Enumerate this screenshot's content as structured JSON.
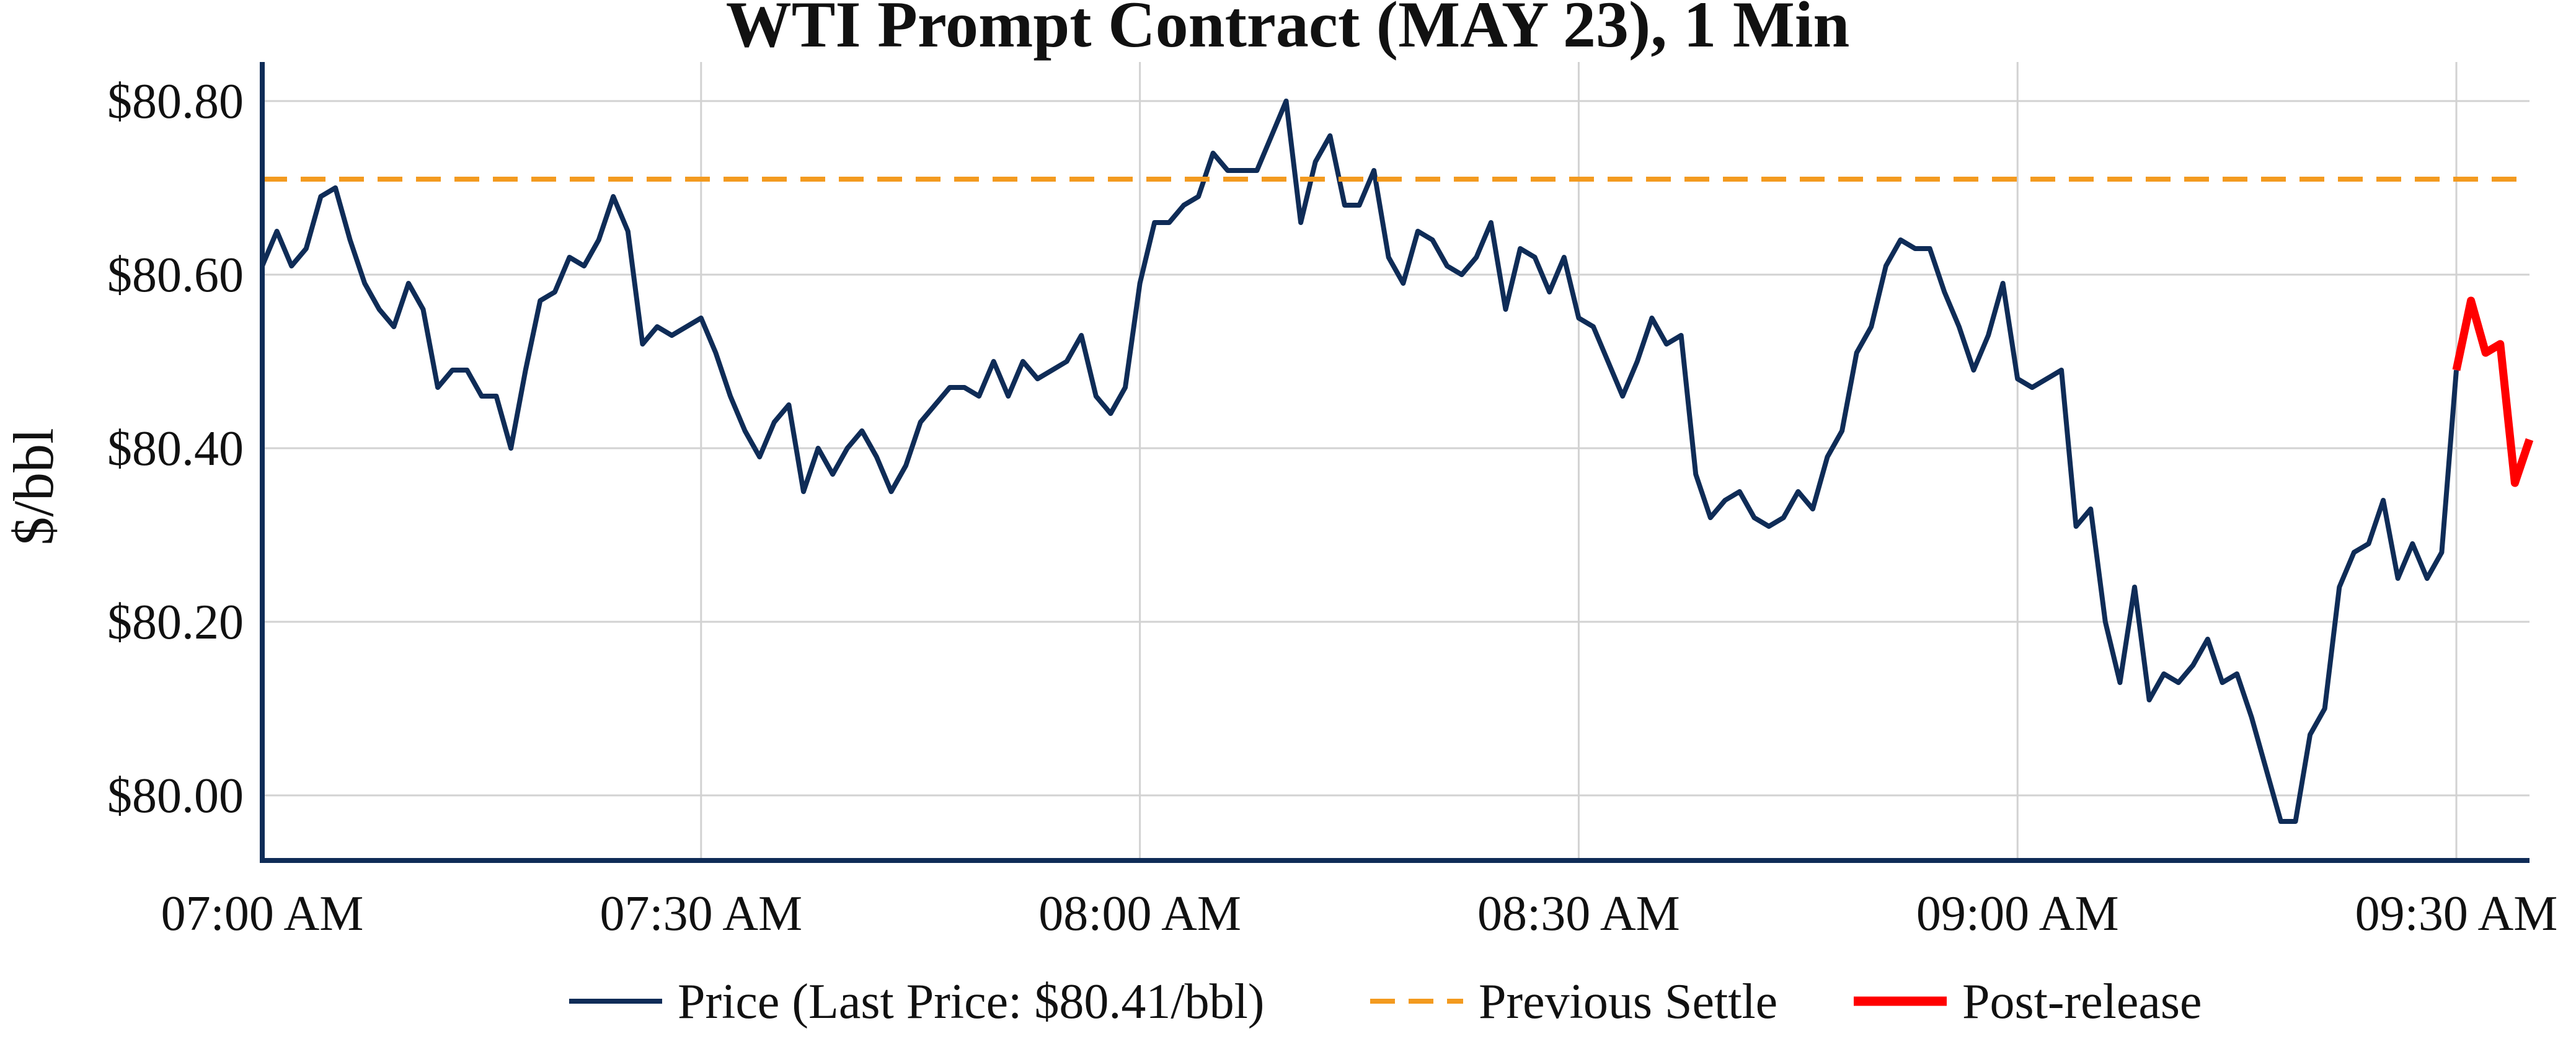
{
  "chart_data": {
    "type": "line",
    "title": "WTI Prompt Contract (MAY 23), 1 Min",
    "ylabel": "$/bbl",
    "xlabel": "",
    "ylim": [
      79.925,
      80.845
    ],
    "xlim_minutes": [
      0,
      155
    ],
    "y_ticks": [
      {
        "value": 80.0,
        "label": "$80.00"
      },
      {
        "value": 80.2,
        "label": "$80.20"
      },
      {
        "value": 80.4,
        "label": "$80.40"
      },
      {
        "value": 80.6,
        "label": "$80.60"
      },
      {
        "value": 80.8,
        "label": "$80.80"
      }
    ],
    "x_ticks": [
      {
        "value": 0,
        "label": "07:00 AM"
      },
      {
        "value": 30,
        "label": "07:30 AM"
      },
      {
        "value": 60,
        "label": "08:00 AM"
      },
      {
        "value": 90,
        "label": "08:30 AM"
      },
      {
        "value": 120,
        "label": "09:00 AM"
      },
      {
        "value": 150,
        "label": "09:30 AM"
      }
    ],
    "grid": true,
    "legend_position": "bottom",
    "series": [
      {
        "name": "Price (Last Price: $80.41/bbl)",
        "style": "solid",
        "color": "#0f2c57",
        "x": [
          0,
          1,
          2,
          3,
          4,
          5,
          6,
          7,
          8,
          9,
          10,
          11,
          12,
          13,
          14,
          15,
          16,
          17,
          18,
          19,
          20,
          21,
          22,
          23,
          24,
          25,
          26,
          27,
          28,
          29,
          30,
          31,
          32,
          33,
          34,
          35,
          36,
          37,
          38,
          39,
          40,
          41,
          42,
          43,
          44,
          45,
          46,
          47,
          48,
          49,
          50,
          51,
          52,
          53,
          54,
          55,
          56,
          57,
          58,
          59,
          60,
          61,
          62,
          63,
          64,
          65,
          66,
          67,
          68,
          69,
          70,
          71,
          72,
          73,
          74,
          75,
          76,
          77,
          78,
          79,
          80,
          81,
          82,
          83,
          84,
          85,
          86,
          87,
          88,
          89,
          90,
          91,
          92,
          93,
          94,
          95,
          96,
          97,
          98,
          99,
          100,
          101,
          102,
          103,
          104,
          105,
          106,
          107,
          108,
          109,
          110,
          111,
          112,
          113,
          114,
          115,
          116,
          117,
          118,
          119,
          120,
          121,
          122,
          123,
          124,
          125,
          126,
          127,
          128,
          129,
          130,
          131,
          132,
          133,
          134,
          135,
          136,
          137,
          138,
          139,
          140,
          141,
          142,
          143,
          144,
          145,
          146,
          147,
          148,
          149,
          150
        ],
        "values": [
          80.61,
          80.65,
          80.61,
          80.63,
          80.69,
          80.7,
          80.64,
          80.59,
          80.56,
          80.54,
          80.59,
          80.56,
          80.47,
          80.49,
          80.49,
          80.46,
          80.46,
          80.4,
          80.49,
          80.57,
          80.58,
          80.62,
          80.61,
          80.64,
          80.69,
          80.65,
          80.52,
          80.54,
          80.53,
          80.54,
          80.55,
          80.51,
          80.46,
          80.42,
          80.39,
          80.43,
          80.45,
          80.35,
          80.4,
          80.37,
          80.4,
          80.42,
          80.39,
          80.35,
          80.38,
          80.43,
          80.45,
          80.47,
          80.47,
          80.46,
          80.5,
          80.46,
          80.5,
          80.48,
          80.49,
          80.5,
          80.53,
          80.46,
          80.44,
          80.47,
          80.59,
          80.66,
          80.66,
          80.68,
          80.69,
          80.74,
          80.72,
          80.72,
          80.72,
          80.76,
          80.8,
          80.66,
          80.73,
          80.76,
          80.68,
          80.68,
          80.72,
          80.62,
          80.59,
          80.65,
          80.64,
          80.61,
          80.6,
          80.62,
          80.66,
          80.56,
          80.63,
          80.62,
          80.58,
          80.62,
          80.55,
          80.54,
          80.5,
          80.46,
          80.5,
          80.55,
          80.52,
          80.53,
          80.37,
          80.32,
          80.34,
          80.35,
          80.32,
          80.31,
          80.32,
          80.35,
          80.33,
          80.39,
          80.42,
          80.51,
          80.54,
          80.61,
          80.64,
          80.63,
          80.63,
          80.58,
          80.54,
          80.49,
          80.53,
          80.59,
          80.48,
          80.47,
          80.48,
          80.49,
          80.31,
          80.33,
          80.2,
          80.13,
          80.24,
          80.11,
          80.14,
          80.13,
          80.15,
          80.18,
          80.13,
          80.14,
          80.09,
          80.03,
          79.97,
          79.97,
          80.07,
          80.1,
          80.24,
          80.28,
          80.29,
          80.34,
          80.25,
          80.29,
          80.25,
          80.28,
          80.49
        ]
      },
      {
        "name": "Previous Settle",
        "style": "dashed",
        "color": "#f39a1f",
        "x": [
          0,
          155
        ],
        "values": [
          80.71,
          80.71
        ]
      },
      {
        "name": "Post-release",
        "style": "solid",
        "color": "#ff0000",
        "x": [
          150,
          151,
          152,
          153,
          154,
          155
        ],
        "values": [
          80.49,
          80.57,
          80.51,
          80.52,
          80.36,
          80.41
        ]
      }
    ]
  }
}
